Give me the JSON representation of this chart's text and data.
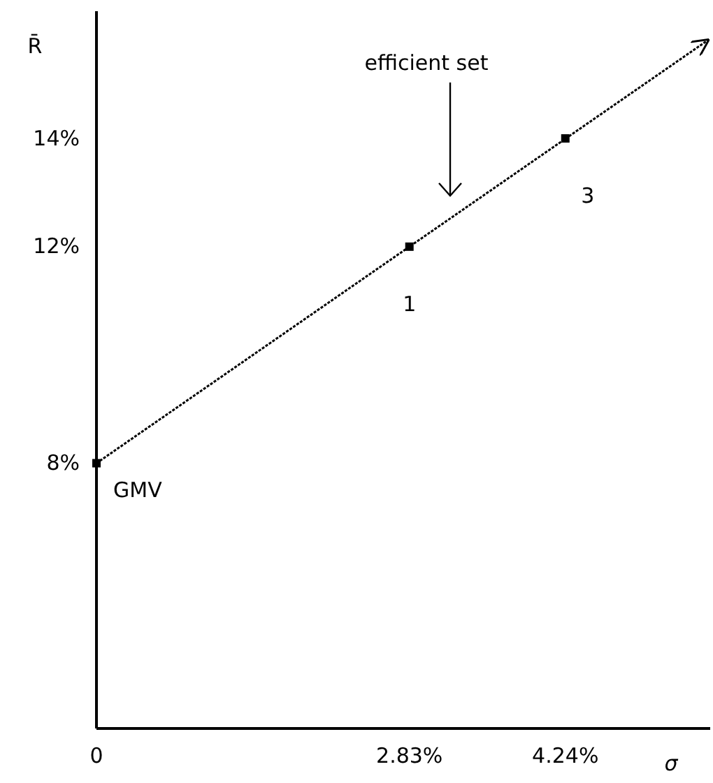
{
  "chart_data": {
    "type": "line",
    "xlabel": "σ",
    "ylabel": "R̄",
    "xlim": [
      0,
      5.55
    ],
    "ylim": [
      3.1,
      16.35
    ],
    "xticks": [
      0,
      {
        "value": 2.83,
        "label": "2.83%"
      },
      {
        "value": 4.24,
        "label": "4.24%"
      }
    ],
    "yticks": [
      {
        "value": 8,
        "label": "8%"
      },
      {
        "value": 12,
        "label": "12%"
      },
      {
        "value": 14,
        "label": "14%"
      }
    ],
    "grid": false,
    "series": [
      {
        "color": "#000000",
        "x": [
          0,
          5.54
        ],
        "values": [
          8,
          15.83
        ],
        "marker": "none",
        "line_style": "dotted"
      },
      {
        "type": "scatter",
        "color": "#000000",
        "x": [
          0,
          2.83,
          4.24
        ],
        "values": [
          8,
          12,
          14
        ],
        "marker": "square"
      }
    ],
    "annotations": [
      {
        "text": "GMV",
        "x": 0,
        "y": 8
      },
      {
        "text": "1",
        "x": 2.83,
        "y": 12
      },
      {
        "text": "3",
        "x": 4.24,
        "y": 14
      },
      "efficient set"
    ]
  }
}
